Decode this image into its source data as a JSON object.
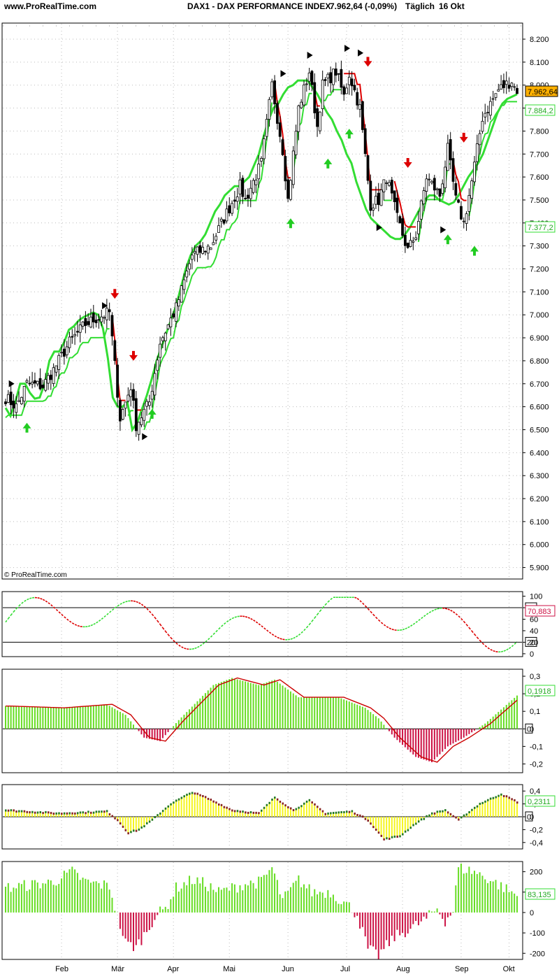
{
  "header": {
    "site": "www.ProRealTime.com",
    "title": "DAX1 - DAX PERFORMANCE INDEX",
    "quote": "7.962,64 (-0,09%)",
    "period": "Täglich",
    "date": "16 Okt"
  },
  "credit": "© ProRealTime.com",
  "colors": {
    "up": "#33dd33",
    "down": "#dd0000",
    "histUp": "#66dd22",
    "histDown": "#cc1144",
    "yellow": "#f5f51e",
    "priceBox": "#ffb000"
  },
  "chart_data": [
    {
      "type": "candlestick",
      "panel": "price",
      "ylim": [
        5850,
        8270
      ],
      "yticks": [
        "5.900",
        "6.000",
        "6.100",
        "6.200",
        "6.300",
        "6.400",
        "6.500",
        "6.600",
        "6.700",
        "6.800",
        "6.900",
        "7.000",
        "7.100",
        "7.200",
        "7.300",
        "7.400",
        "7.500",
        "7.600",
        "7.700",
        "7.800",
        "7.900",
        "8.000",
        "8.100",
        "8.200"
      ],
      "months": [
        "Feb",
        "Mär",
        "Apr",
        "Mai",
        "Jun",
        "Jul",
        "Aug",
        "Sep",
        "Okt"
      ],
      "close_anchors": [
        [
          0,
          6640
        ],
        [
          4,
          6600
        ],
        [
          8,
          6700
        ],
        [
          14,
          6690
        ],
        [
          18,
          6760
        ],
        [
          24,
          6880
        ],
        [
          30,
          6960
        ],
        [
          35,
          6990
        ],
        [
          39,
          7010
        ],
        [
          43,
          6550
        ],
        [
          47,
          6690
        ],
        [
          49,
          6520
        ],
        [
          54,
          6620
        ],
        [
          58,
          6880
        ],
        [
          64,
          7030
        ],
        [
          70,
          7260
        ],
        [
          77,
          7300
        ],
        [
          82,
          7420
        ],
        [
          88,
          7560
        ],
        [
          90,
          7500
        ],
        [
          96,
          7660
        ],
        [
          100,
          8000
        ],
        [
          104,
          7720
        ],
        [
          106,
          7500
        ],
        [
          110,
          7900
        ],
        [
          114,
          8060
        ],
        [
          117,
          7820
        ],
        [
          119,
          8000
        ],
        [
          124,
          8060
        ],
        [
          127,
          7950
        ],
        [
          129,
          8050
        ],
        [
          133,
          7900
        ],
        [
          137,
          7480
        ],
        [
          140,
          7500
        ],
        [
          143,
          7600
        ],
        [
          147,
          7420
        ],
        [
          151,
          7280
        ],
        [
          154,
          7350
        ],
        [
          158,
          7600
        ],
        [
          163,
          7520
        ],
        [
          166,
          7720
        ],
        [
          169,
          7500
        ],
        [
          172,
          7400
        ],
        [
          175,
          7580
        ],
        [
          179,
          7860
        ],
        [
          185,
          7980
        ],
        [
          190,
          8020
        ],
        [
          192,
          7962
        ]
      ],
      "series": [
        {
          "name": "",
          "values": [
            6595,
            6560,
            6620,
            6700,
            6700,
            6660,
            6635,
            6640,
            6700,
            6800,
            6840,
            6840,
            6880,
            6935,
            6950,
            6975,
            6990,
            7000,
            7010,
            7000,
            6940,
            6810,
            6640,
            6600,
            6600,
            6620,
            6500,
            6530,
            6590,
            6650,
            6720,
            6800,
            6860,
            6920,
            6980,
            7040,
            7120,
            7200,
            7260,
            7300,
            7320,
            7350,
            7400,
            7450,
            7480,
            7520,
            7540,
            7560,
            7560,
            7580,
            7600,
            7650,
            7700,
            7780,
            7850,
            7900,
            7920,
            7960,
            7990,
            8000,
            8020,
            8020,
            8020,
            7990,
            7960,
            7920,
            7880,
            7850,
            7800,
            7760,
            7700,
            7660,
            7580,
            7520,
            7460,
            7420,
            7400,
            7380,
            7360,
            7340,
            7330,
            7330,
            7350,
            7380,
            7420,
            7460,
            7500,
            7520,
            7520,
            7500,
            7490,
            7480,
            7490,
            7520,
            7560,
            7600,
            7630,
            7660,
            7700,
            7760,
            7820,
            7880,
            7920,
            7940,
            7950,
            7960
          ]
        },
        {
          "name": "",
          "values": []
        }
      ]
    },
    {
      "type": "line",
      "panel": "oscillator",
      "ylim": [
        -5,
        108
      ],
      "yticks": [
        "0",
        "20",
        "40",
        "60",
        "80",
        "100"
      ],
      "levels": [
        20,
        80
      ],
      "last": "70,883"
    },
    {
      "type": "histogram",
      "panel": "macd",
      "ylim": [
        -0.25,
        0.34
      ],
      "yticks": [
        "0,3",
        "0,2",
        "0,1",
        "0",
        "-0,1",
        "-0,2"
      ],
      "last": "0,1918"
    },
    {
      "type": "histogram",
      "panel": "momentum",
      "ylim": [
        -0.5,
        0.5
      ],
      "yticks": [
        "0,4",
        "0,2",
        "0",
        "-0,2",
        "-0,4"
      ],
      "last": "0,2311"
    },
    {
      "type": "bar",
      "panel": "volume-oscillator",
      "ylim": [
        -230,
        250
      ],
      "yticks": [
        "200",
        "100",
        "0",
        "-100",
        "-200"
      ],
      "last": "83,135"
    }
  ],
  "labels": {
    "priceLast": "7.962,64",
    "stopLast": "7.884,2",
    "maLast": "7.377,2",
    "oscUpper": "80",
    "oscLower": "20",
    "macdZero": "0",
    "momZero": "0"
  }
}
